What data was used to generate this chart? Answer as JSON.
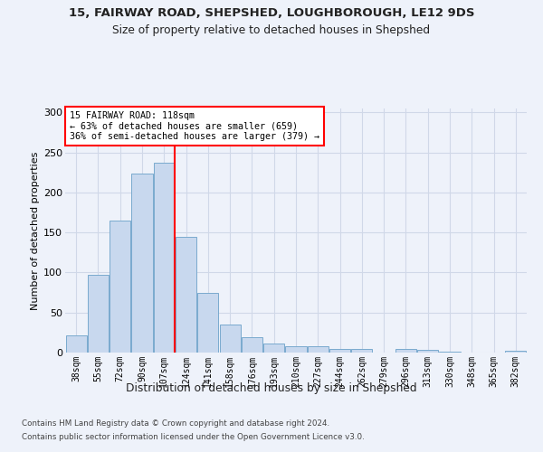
{
  "title1": "15, FAIRWAY ROAD, SHEPSHED, LOUGHBOROUGH, LE12 9DS",
  "title2": "Size of property relative to detached houses in Shepshed",
  "xlabel": "Distribution of detached houses by size in Shepshed",
  "ylabel": "Number of detached properties",
  "bar_labels": [
    "38sqm",
    "55sqm",
    "72sqm",
    "90sqm",
    "107sqm",
    "124sqm",
    "141sqm",
    "158sqm",
    "176sqm",
    "193sqm",
    "210sqm",
    "227sqm",
    "244sqm",
    "262sqm",
    "279sqm",
    "296sqm",
    "313sqm",
    "330sqm",
    "348sqm",
    "365sqm",
    "382sqm"
  ],
  "bar_values": [
    22,
    97,
    165,
    224,
    237,
    145,
    75,
    35,
    19,
    11,
    8,
    8,
    4,
    4,
    0,
    4,
    3,
    1,
    0,
    0,
    2
  ],
  "bar_color": "#c8d8ee",
  "bar_edge_color": "#7aaace",
  "vline_x": 4.5,
  "annotation_line1": "15 FAIRWAY ROAD: 118sqm",
  "annotation_line2": "← 63% of detached houses are smaller (659)",
  "annotation_line3": "36% of semi-detached houses are larger (379) →",
  "ylim": [
    0,
    305
  ],
  "yticks": [
    0,
    50,
    100,
    150,
    200,
    250,
    300
  ],
  "footer1": "Contains HM Land Registry data © Crown copyright and database right 2024.",
  "footer2": "Contains public sector information licensed under the Open Government Licence v3.0.",
  "bg_color": "#eef2fa",
  "grid_color": "#d0d8e8"
}
